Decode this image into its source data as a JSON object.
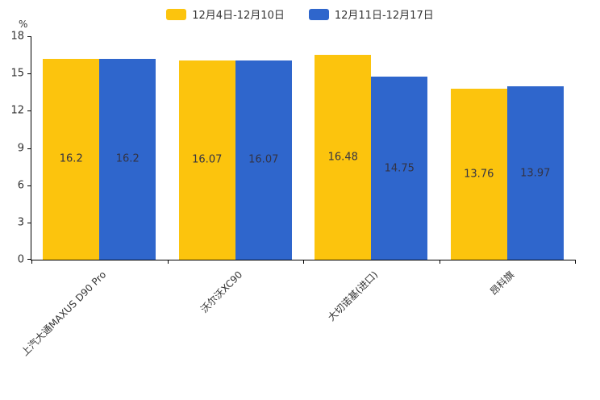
{
  "chart_data": {
    "type": "bar",
    "categories": [
      "上汽大通MAXUS D90 Pro",
      "沃尔沃XC90",
      "大切诺基(进口)",
      "昂科旗"
    ],
    "series": [
      {
        "name": "12月4日-12月10日",
        "color": "#FCC40D",
        "values": [
          16.2,
          16.07,
          16.48,
          13.76
        ]
      },
      {
        "name": "12月11日-12月17日",
        "color": "#2F66CC",
        "values": [
          16.2,
          16.07,
          14.75,
          13.97
        ]
      }
    ],
    "ylabel": "%",
    "ylim": [
      0,
      18
    ],
    "yticks": [
      0,
      3,
      6,
      9,
      12,
      15,
      18
    ],
    "grid": false,
    "legend_position": "top"
  }
}
